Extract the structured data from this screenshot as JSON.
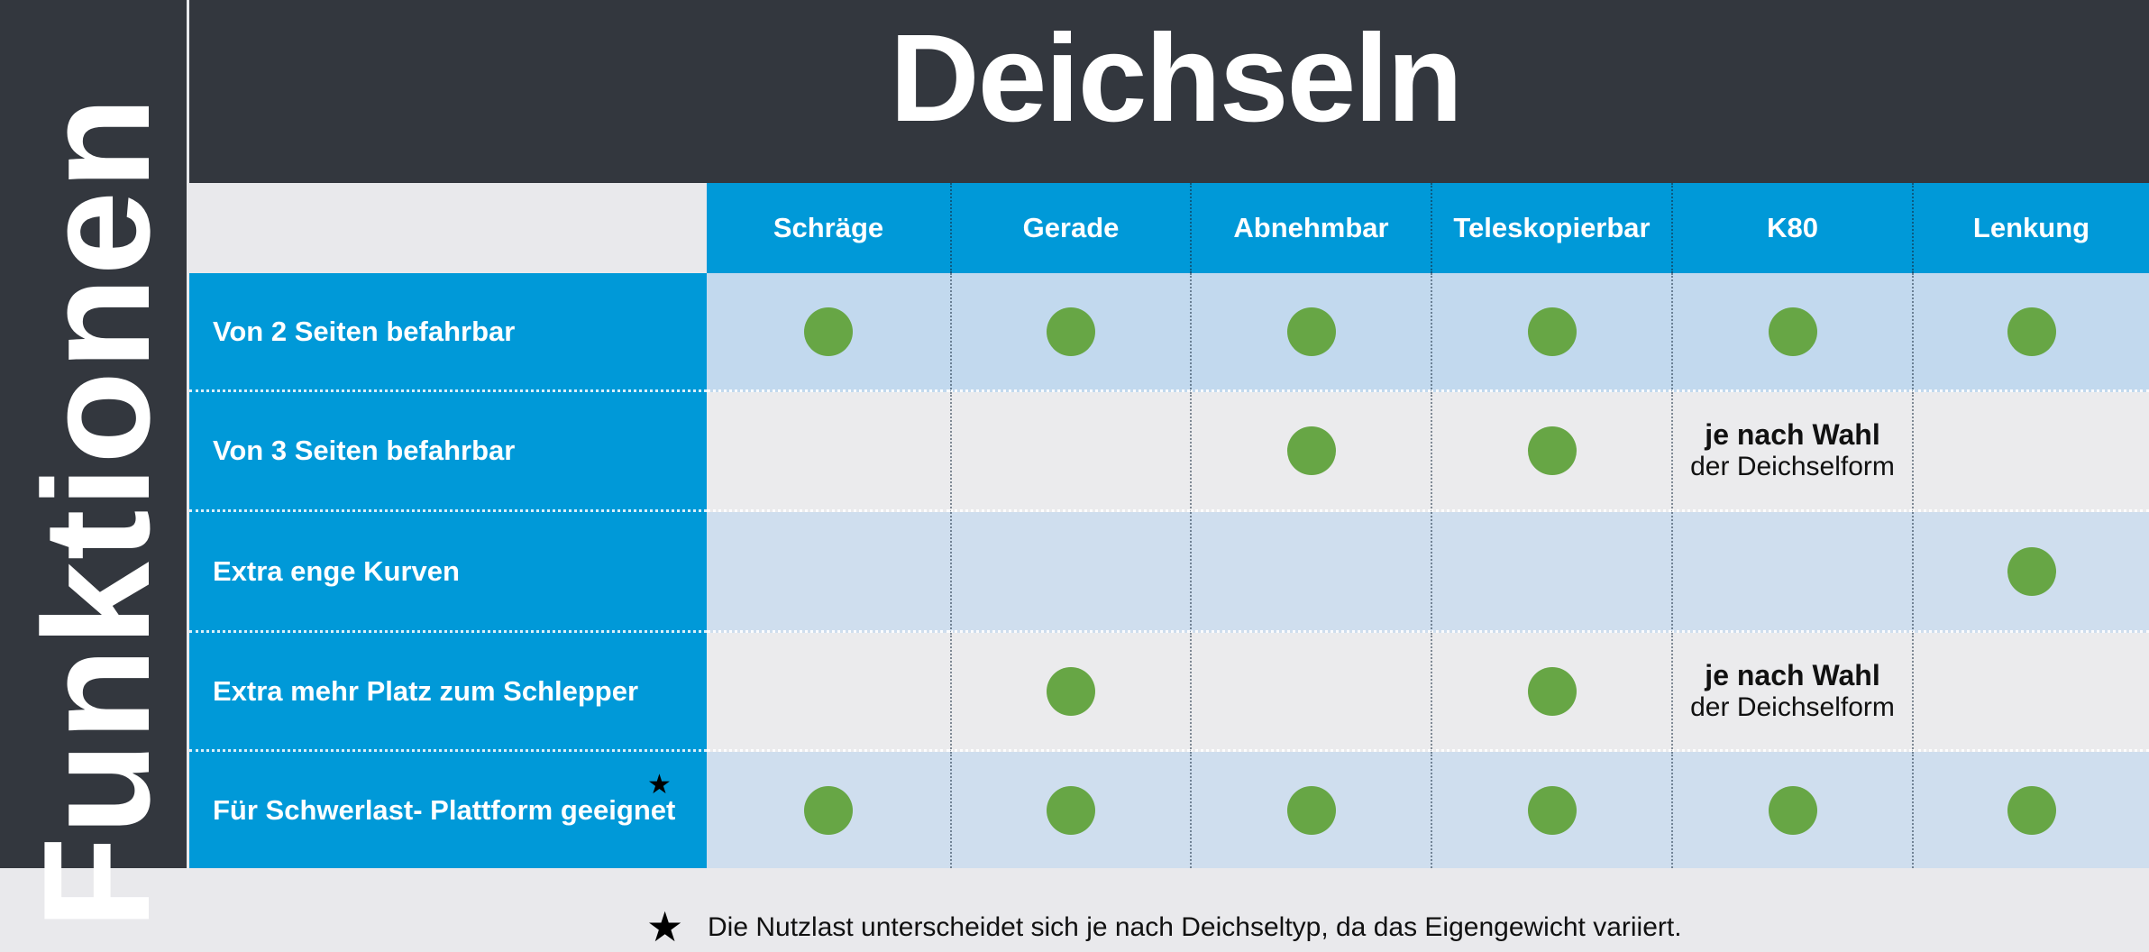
{
  "side_label": "Funktionen",
  "title": "Deichseln",
  "columns": [
    "Schräge",
    "Gerade",
    "Abnehmbar",
    "Teleskopierbar",
    "K80",
    "Lenkung"
  ],
  "rows": [
    {
      "label": "Von 2 Seiten befahrbar",
      "cells": [
        "dot",
        "dot",
        "dot",
        "dot",
        "dot",
        "dot"
      ]
    },
    {
      "label": "Von 3 Seiten befahrbar",
      "cells": [
        "",
        "",
        "dot",
        "dot",
        "note",
        ""
      ]
    },
    {
      "label": "Extra enge Kurven",
      "cells": [
        "",
        "",
        "",
        "",
        "",
        "dot"
      ]
    },
    {
      "label": "Extra mehr Platz zum Schlepper",
      "cells": [
        "",
        "dot",
        "",
        "dot",
        "note",
        ""
      ]
    },
    {
      "label": "Für Schwerlast- Plattform geeignet",
      "cells": [
        "dot",
        "dot",
        "dot",
        "dot",
        "dot",
        "dot"
      ]
    }
  ],
  "note": {
    "bold": "je nach Wahl",
    "regular": "der Deichselform"
  },
  "footnote": "Die Nutzlast unterscheidet sich je nach Deichseltyp, da das Eigengewicht variiert.",
  "colors": {
    "dark": "#33373e",
    "blue": "#0099d8",
    "row_light_blue": "#c2d9ee",
    "row_pale_blue": "#cfdeee",
    "row_grey": "#ebebed",
    "dot_green": "#67a645"
  }
}
